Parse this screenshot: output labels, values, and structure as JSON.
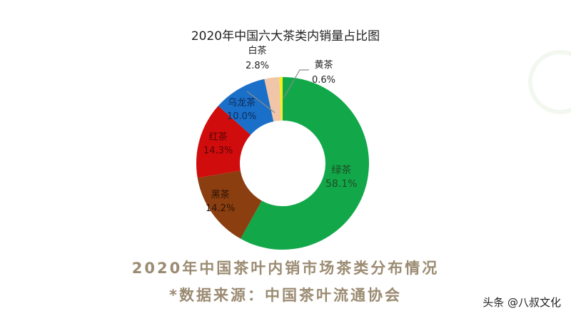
{
  "chart_data": {
    "type": "pie",
    "subtype": "donut",
    "title": "2020年中国六大茶类内销量占比图",
    "categories": [
      "绿茶",
      "黑茶",
      "红茶",
      "乌龙茶",
      "白茶",
      "黄茶"
    ],
    "values": [
      58.1,
      14.2,
      14.3,
      10.0,
      2.8,
      0.6
    ],
    "unit": "%",
    "value_labels": [
      "58.1%",
      "14.2%",
      "14.3%",
      "10.0%",
      "2.8%",
      "0.6%"
    ],
    "colors": [
      "#12a84a",
      "#8b3e10",
      "#d00c0c",
      "#1a6fc9",
      "#f1c6a8",
      "#f5ef1c"
    ],
    "start_angle": "12 o'clock",
    "direction": "clockwise",
    "legend": "none (inline data labels)"
  },
  "labels": [
    {
      "name": "绿茶",
      "value": "58.1%",
      "color": "#1d4d22"
    },
    {
      "name": "黑茶",
      "value": "14.2%",
      "color": "#2a1406"
    },
    {
      "name": "红茶",
      "value": "14.3%",
      "color": "#5a0505"
    },
    {
      "name": "乌龙茶",
      "value": "10.0%",
      "color": "#0c2d59"
    },
    {
      "name": "白茶",
      "value": "2.8%",
      "color": "#222222"
    },
    {
      "name": "黄茶",
      "value": "0.6%",
      "color": "#222222"
    }
  ],
  "caption": {
    "line1": "2020年中国茶叶内销市场茶类分布情况",
    "line2": "*数据来源：中国茶叶流通协会"
  },
  "attribution": "头条 @八叔文化"
}
